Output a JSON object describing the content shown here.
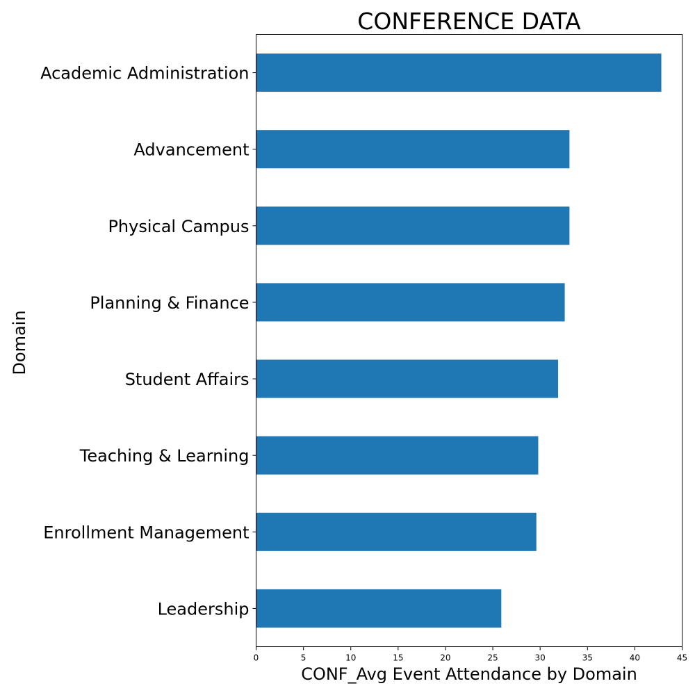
{
  "chart_data": {
    "type": "bar",
    "orientation": "horizontal",
    "title": "CONFERENCE DATA",
    "xlabel": "CONF_Avg Event Attendance by Domain",
    "ylabel": "Domain",
    "categories": [
      "Academic Administration",
      "Advancement",
      "Physical Campus",
      "Planning & Finance",
      "Student Affairs",
      "Teaching & Learning",
      "Enrollment Management",
      "Leadership"
    ],
    "values": [
      42.8,
      33.1,
      33.1,
      32.6,
      31.9,
      29.8,
      29.6,
      25.9
    ],
    "xlim": [
      0,
      45
    ],
    "x_ticks": [
      0,
      5,
      10,
      15,
      20,
      25,
      30,
      35,
      40,
      45
    ],
    "bar_color": "#1f77b4",
    "grid": false,
    "legend": "none"
  }
}
